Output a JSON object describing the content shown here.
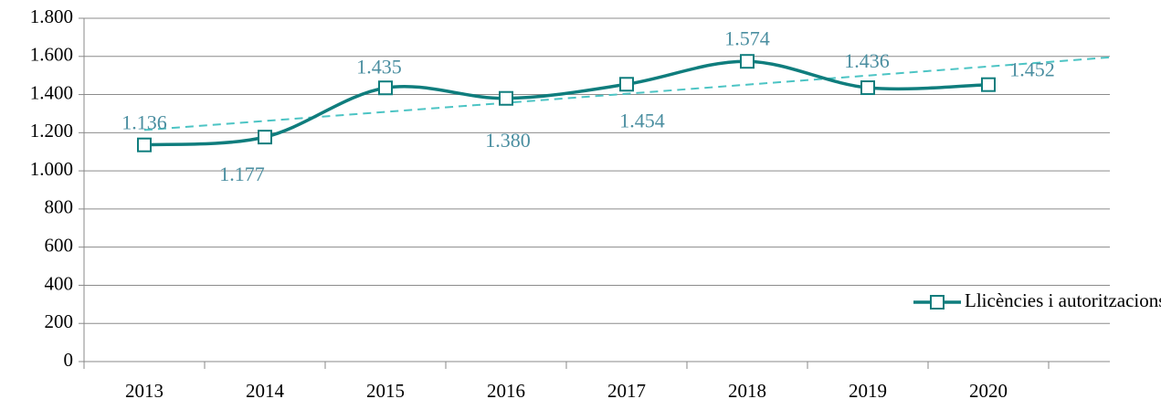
{
  "chart_data": {
    "type": "line",
    "categories": [
      "2013",
      "2014",
      "2015",
      "2016",
      "2017",
      "2018",
      "2019",
      "2020"
    ],
    "series": [
      {
        "name": "Llicències i autoritzacions d'obres",
        "color": "#0f7d7d",
        "values": [
          1136,
          1177,
          1435,
          1380,
          1454,
          1574,
          1436,
          1452
        ],
        "value_labels": [
          "1.136",
          "1.177",
          "1.435",
          "1.380",
          "1.454",
          "1.574",
          "1.436",
          "1.452"
        ]
      }
    ],
    "ylim": [
      0,
      1800
    ],
    "yticks": [
      0,
      200,
      400,
      600,
      800,
      {
        "value": 1000,
        "label": "1.000"
      },
      {
        "value": 1200,
        "label": "1.200"
      },
      {
        "value": 1400,
        "label": "1.400"
      },
      {
        "value": 1600,
        "label": "1.600"
      },
      {
        "value": 1800,
        "label": "1.800"
      }
    ],
    "grid": true,
    "smooth": true,
    "trendline": {
      "type": "linear",
      "color": "#4cc4c4"
    },
    "legend": "lower right"
  }
}
